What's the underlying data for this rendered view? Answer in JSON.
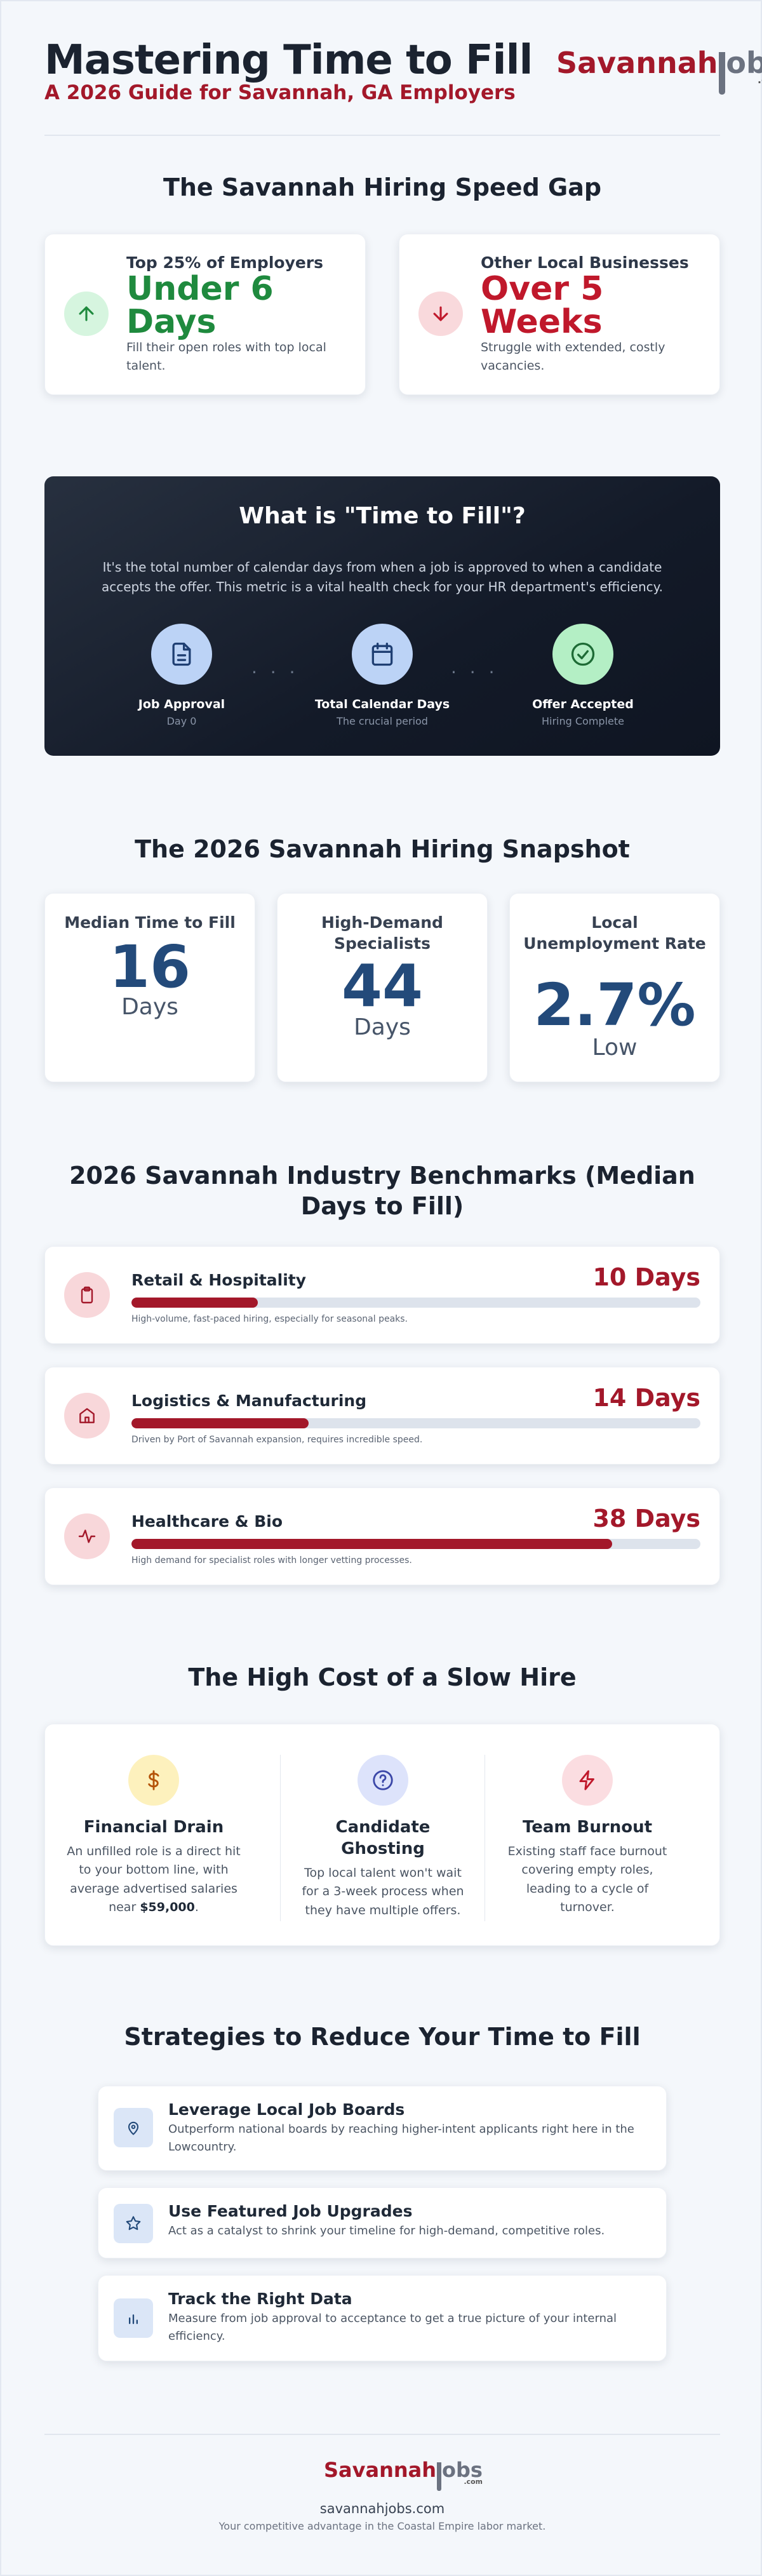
{
  "header": {
    "title": "Mastering Time to Fill",
    "subtitle": "A 2026 Guide for Savannah, GA Employers",
    "logo": {
      "brand_red": "Savannah",
      "brand_gray_a": "j",
      "brand_gray_b": "obs",
      "suffix": ".com"
    }
  },
  "speed_gap": {
    "title": "The Savannah Hiring Speed Gap",
    "cards": [
      {
        "label": "Top 25% of Employers",
        "value": "Under 6 Days",
        "desc": "Fill their open roles with top local talent.",
        "icon": "arrow-up-icon",
        "color": "#1f8a3e"
      },
      {
        "label": "Other Local Businesses",
        "value": "Over 5 Weeks",
        "desc": "Struggle with extended, costly vacancies.",
        "icon": "arrow-down-icon",
        "color": "#c0182b"
      }
    ]
  },
  "definition": {
    "title": "What is \"Time to Fill\"?",
    "desc": "It's the total number of calendar days from when a job is approved to when a candidate accepts the offer. This metric is a vital health check for your HR department's efficiency.",
    "steps": [
      {
        "label": "Job Approval",
        "sub": "Day 0",
        "icon": "document-icon"
      },
      {
        "label": "Total Calendar Days",
        "sub": "The crucial period",
        "icon": "calendar-icon"
      },
      {
        "label": "Offer Accepted",
        "sub": "Hiring Complete",
        "icon": "check-circle-icon"
      }
    ],
    "dots": "· · ·"
  },
  "snapshot": {
    "title": "The 2026 Savannah Hiring Snapshot",
    "stats": [
      {
        "label": "Median Time to Fill",
        "value": "16",
        "unit": "Days"
      },
      {
        "label": "High-Demand Specialists",
        "value": "44",
        "unit": "Days"
      },
      {
        "label": "Local Unemployment Rate",
        "value": "2.7%",
        "unit": "Low"
      }
    ]
  },
  "benchmarks": {
    "title": "2026 Savannah Industry Benchmarks (Median Days to Fill)",
    "items": [
      {
        "name": "Retail & Hospitality",
        "days_label": "10 Days",
        "days": 10,
        "note": "High-volume, fast-paced hiring, especially for seasonal peaks.",
        "icon": "clipboard-icon"
      },
      {
        "name": "Logistics & Manufacturing",
        "days_label": "14 Days",
        "days": 14,
        "note": "Driven by Port of Savannah expansion, requires incredible speed.",
        "icon": "warehouse-icon"
      },
      {
        "name": "Healthcare & Bio",
        "days_label": "38 Days",
        "days": 38,
        "note": "High demand for specialist roles with longer vetting processes.",
        "icon": "pulse-icon"
      }
    ],
    "scale_max": 45
  },
  "cost": {
    "title": "The High Cost of a Slow Hire",
    "items": [
      {
        "title": "Financial Drain",
        "desc_a": "An unfilled role is a direct hit to your bottom line, with average advertised salaries near ",
        "desc_b": "$59,000",
        "desc_c": ".",
        "icon": "dollar-icon"
      },
      {
        "title": "Candidate Ghosting",
        "desc": "Top local talent won't wait for a 3-week process when they have multiple offers.",
        "icon": "question-icon"
      },
      {
        "title": "Team Burnout",
        "desc": "Existing staff face burnout covering empty roles, leading to a cycle of turnover.",
        "icon": "lightning-icon"
      }
    ]
  },
  "strategies": {
    "title": "Strategies to Reduce Your Time to Fill",
    "items": [
      {
        "title": "Leverage Local Job Boards",
        "desc": "Outperform national boards by reaching higher-intent applicants right here in the Lowcountry.",
        "icon": "map-pin-icon"
      },
      {
        "title": "Use Featured Job Upgrades",
        "desc": "Act as a catalyst to shrink your timeline for high-demand, competitive roles.",
        "icon": "star-icon"
      },
      {
        "title": "Track the Right Data",
        "desc": "Measure from job approval to acceptance to get a true picture of your internal efficiency.",
        "icon": "bar-chart-icon"
      }
    ]
  },
  "footer": {
    "site": "savannahjobs.com",
    "tagline": "Your competitive advantage in the Coastal Empire labor market."
  },
  "colors": {
    "brand_red": "#a3182a",
    "navy": "#234a7a",
    "green": "#1f8a3e"
  }
}
